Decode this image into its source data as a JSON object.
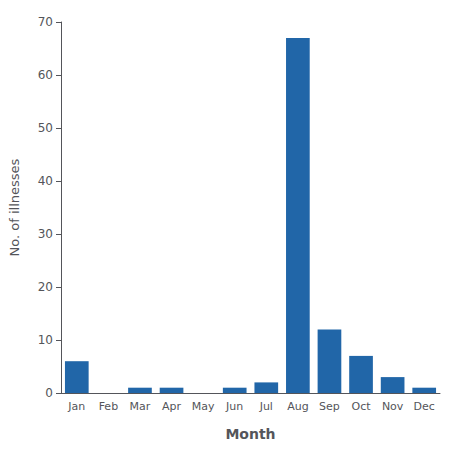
{
  "chart_data": {
    "type": "bar",
    "categories": [
      "Jan",
      "Feb",
      "Mar",
      "Apr",
      "May",
      "Jun",
      "Jul",
      "Aug",
      "Sep",
      "Oct",
      "Nov",
      "Dec"
    ],
    "values": [
      6,
      0,
      1,
      1,
      0,
      1,
      2,
      67,
      12,
      7,
      3,
      1
    ],
    "color": "#2166a8",
    "xlabel": "Month",
    "ylabel": "No. of illnesses",
    "ylim": [
      0,
      70
    ],
    "yticks": [
      0,
      10,
      20,
      30,
      40,
      50,
      60,
      70
    ],
    "grid": false
  }
}
